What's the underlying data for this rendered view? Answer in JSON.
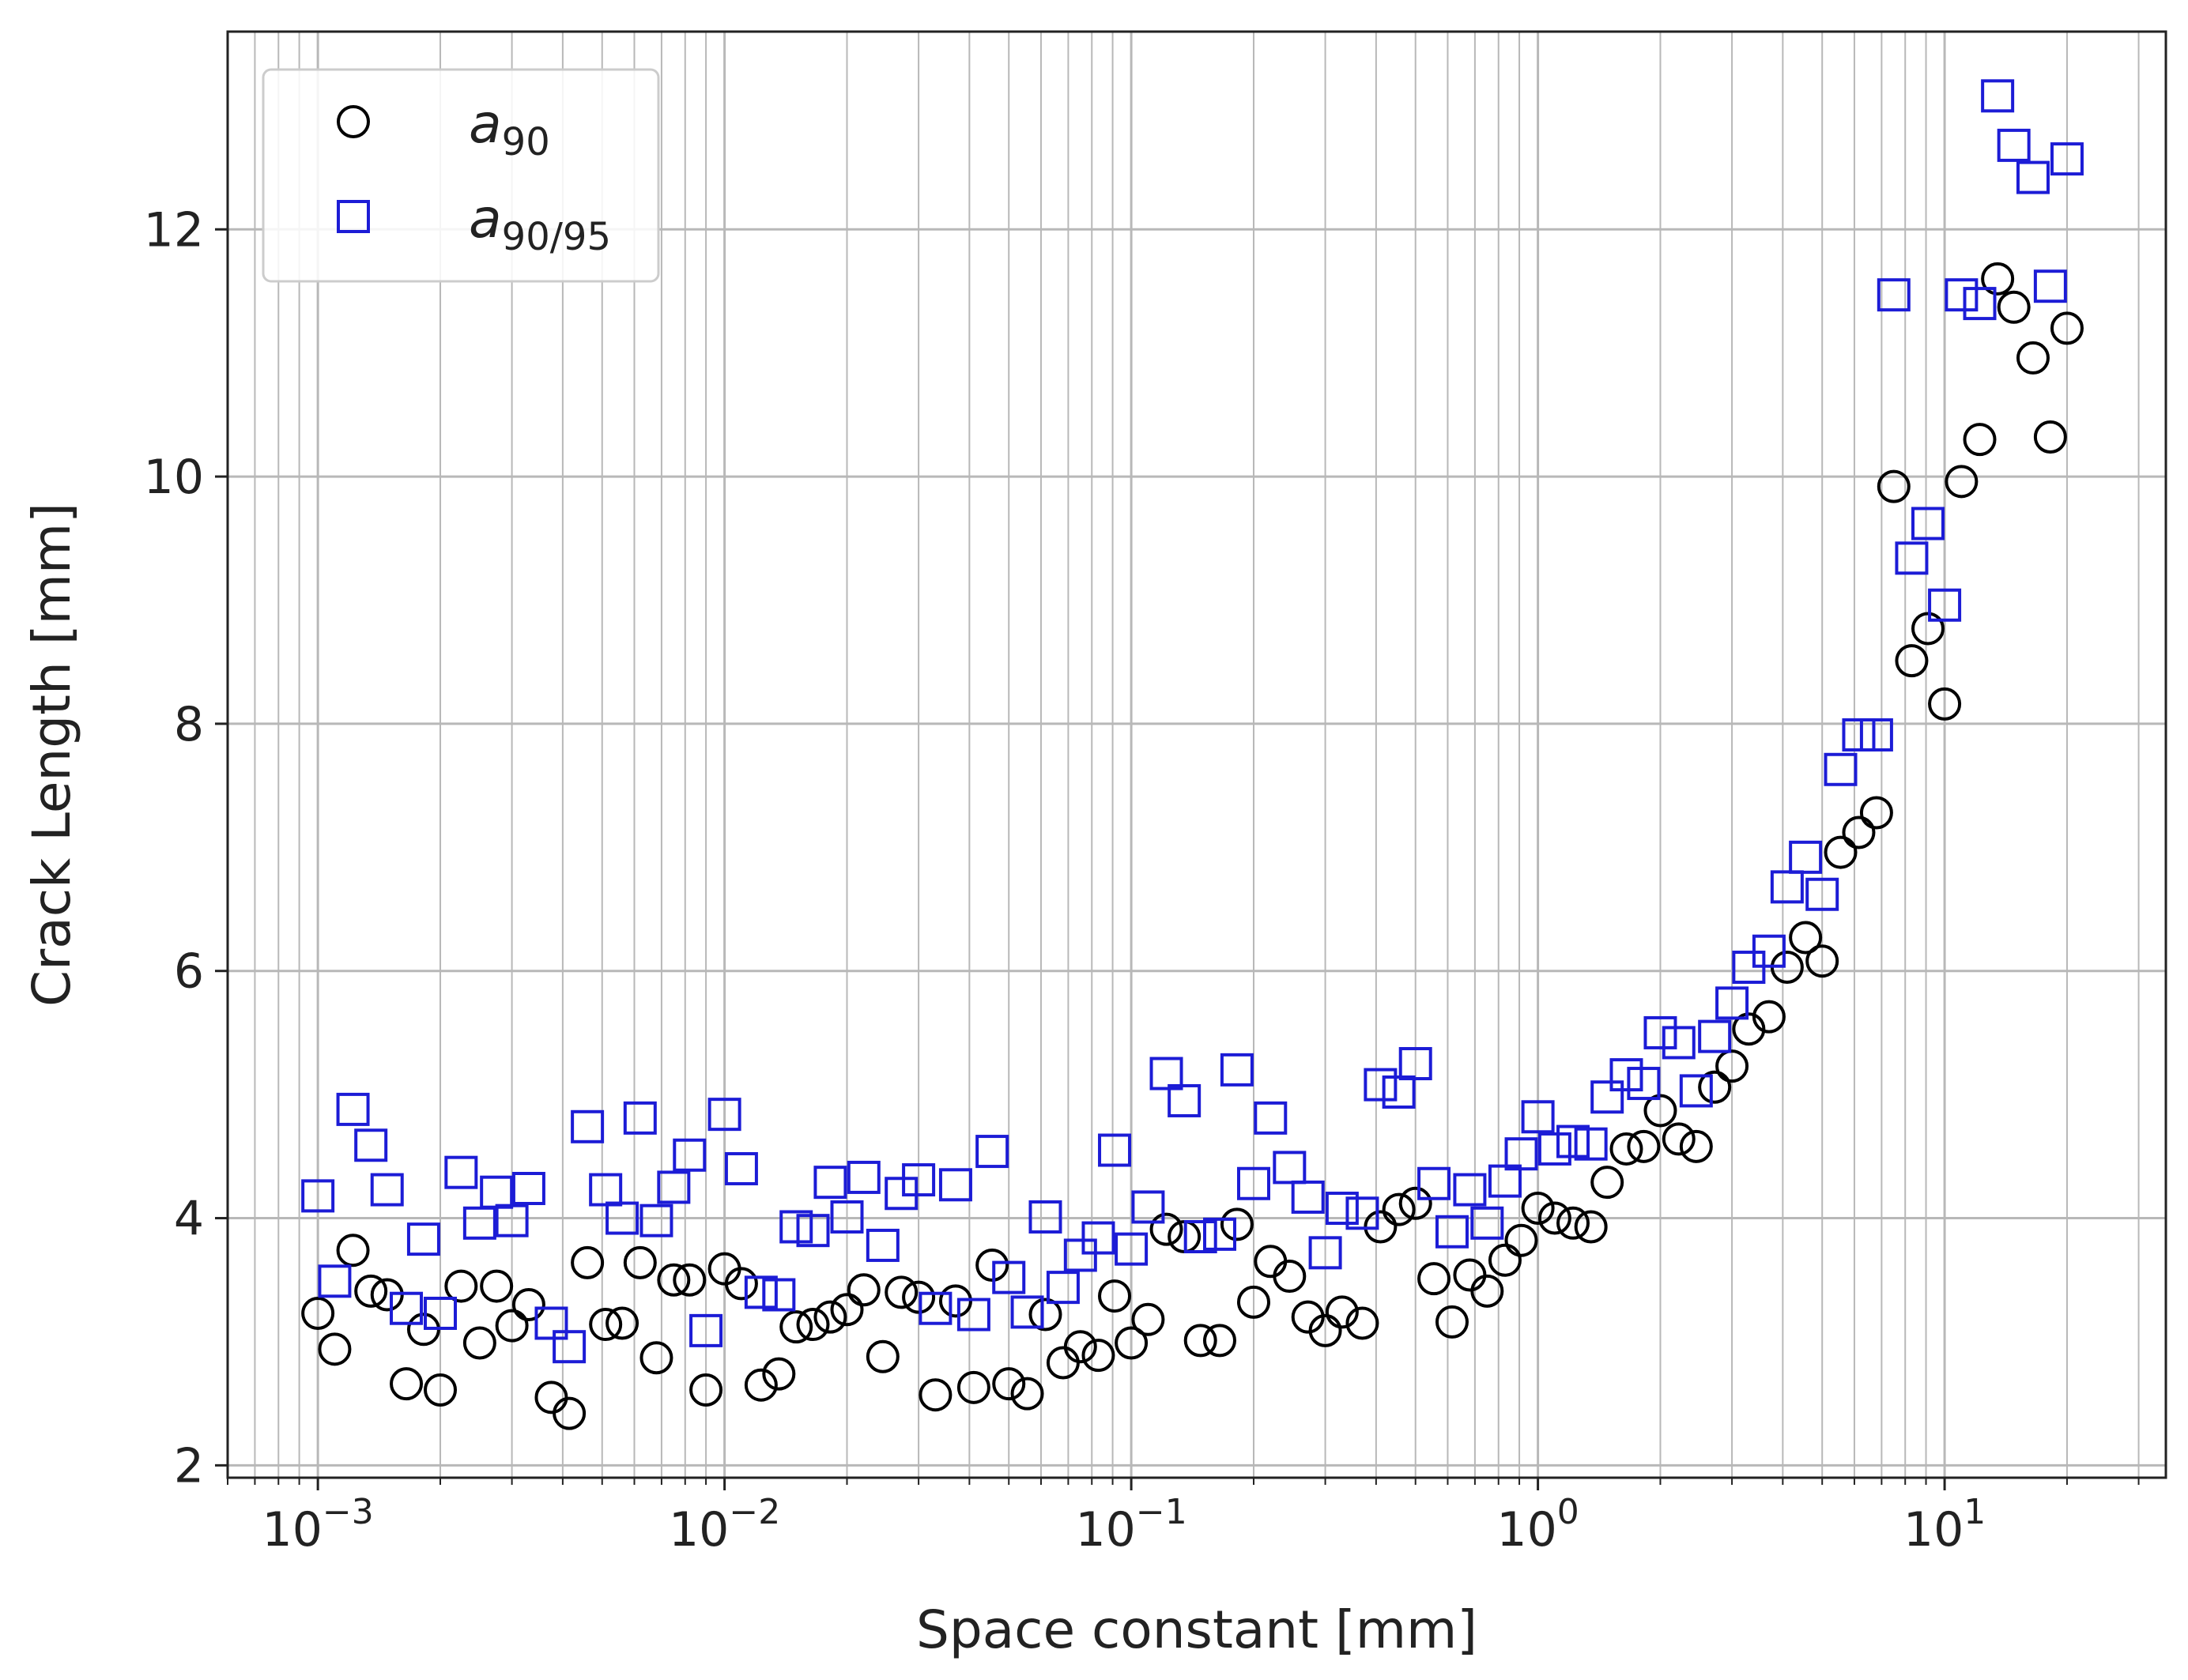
{
  "chart_data": {
    "type": "scatter",
    "title": "",
    "xlabel": "Space constant [mm]",
    "ylabel": "Crack Length [mm]",
    "x_scale": "log",
    "xlim": [
      0.0006,
      35
    ],
    "ylim": [
      1.9,
      13.6
    ],
    "x_ticks": [
      {
        "value": 0.001,
        "base": "10",
        "exp": "−3"
      },
      {
        "value": 0.01,
        "base": "10",
        "exp": "−2"
      },
      {
        "value": 0.1,
        "base": "10",
        "exp": "−1"
      },
      {
        "value": 1,
        "base": "10",
        "exp": "0"
      },
      {
        "value": 10,
        "base": "10",
        "exp": "1"
      }
    ],
    "y_ticks": [
      2,
      4,
      6,
      8,
      10,
      12
    ],
    "grid": true,
    "legend_position": "top-left",
    "series": [
      {
        "name": "a90",
        "label_main": "a",
        "label_sub": "90",
        "marker": "circle",
        "color": "#000000",
        "points": [
          [
            0.001,
            3.23
          ],
          [
            0.0011,
            2.94
          ],
          [
            0.00122,
            3.74
          ],
          [
            0.00135,
            3.41
          ],
          [
            0.00148,
            3.38
          ],
          [
            0.00165,
            2.66
          ],
          [
            0.00182,
            3.1
          ],
          [
            0.002,
            2.61
          ],
          [
            0.00225,
            3.45
          ],
          [
            0.0025,
            2.99
          ],
          [
            0.00275,
            3.45
          ],
          [
            0.003,
            3.13
          ],
          [
            0.0033,
            3.3
          ],
          [
            0.00375,
            2.55
          ],
          [
            0.00415,
            2.42
          ],
          [
            0.0046,
            3.64
          ],
          [
            0.0051,
            3.14
          ],
          [
            0.0056,
            3.15
          ],
          [
            0.0062,
            3.64
          ],
          [
            0.0068,
            2.87
          ],
          [
            0.0075,
            3.5
          ],
          [
            0.0082,
            3.5
          ],
          [
            0.009,
            2.61
          ],
          [
            0.01,
            3.59
          ],
          [
            0.011,
            3.47
          ],
          [
            0.0123,
            2.65
          ],
          [
            0.0136,
            2.74
          ],
          [
            0.015,
            3.12
          ],
          [
            0.0165,
            3.14
          ],
          [
            0.0182,
            3.2
          ],
          [
            0.02,
            3.26
          ],
          [
            0.022,
            3.42
          ],
          [
            0.0245,
            2.88
          ],
          [
            0.0272,
            3.4
          ],
          [
            0.03,
            3.36
          ],
          [
            0.033,
            2.57
          ],
          [
            0.037,
            3.33
          ],
          [
            0.041,
            2.63
          ],
          [
            0.0455,
            3.62
          ],
          [
            0.05,
            2.66
          ],
          [
            0.0555,
            2.58
          ],
          [
            0.0615,
            3.22
          ],
          [
            0.068,
            2.83
          ],
          [
            0.075,
            2.96
          ],
          [
            0.083,
            2.89
          ],
          [
            0.091,
            3.37
          ],
          [
            0.1,
            2.99
          ],
          [
            0.11,
            3.18
          ],
          [
            0.122,
            3.91
          ],
          [
            0.135,
            3.85
          ],
          [
            0.148,
            3.01
          ],
          [
            0.165,
            3.01
          ],
          [
            0.182,
            3.95
          ],
          [
            0.2,
            3.32
          ],
          [
            0.22,
            3.65
          ],
          [
            0.245,
            3.53
          ],
          [
            0.272,
            3.2
          ],
          [
            0.3,
            3.09
          ],
          [
            0.33,
            3.24
          ],
          [
            0.37,
            3.15
          ],
          [
            0.41,
            3.93
          ],
          [
            0.455,
            4.07
          ],
          [
            0.5,
            4.12
          ],
          [
            0.555,
            3.51
          ],
          [
            0.615,
            3.16
          ],
          [
            0.68,
            3.54
          ],
          [
            0.75,
            3.41
          ],
          [
            0.83,
            3.66
          ],
          [
            0.91,
            3.82
          ],
          [
            1.0,
            4.08
          ],
          [
            1.1,
            4.0
          ],
          [
            1.22,
            3.96
          ],
          [
            1.35,
            3.93
          ],
          [
            1.48,
            4.29
          ],
          [
            1.65,
            4.56
          ],
          [
            1.82,
            4.58
          ],
          [
            2.0,
            4.87
          ],
          [
            2.22,
            4.64
          ],
          [
            2.45,
            4.58
          ],
          [
            2.72,
            5.06
          ],
          [
            3.0,
            5.23
          ],
          [
            3.3,
            5.53
          ],
          [
            3.7,
            5.63
          ],
          [
            4.1,
            6.03
          ],
          [
            4.55,
            6.27
          ],
          [
            5.0,
            6.08
          ],
          [
            5.55,
            6.96
          ],
          [
            6.15,
            7.12
          ],
          [
            6.8,
            7.28
          ],
          [
            7.5,
            9.92
          ],
          [
            8.3,
            8.51
          ],
          [
            9.1,
            8.77
          ],
          [
            10.0,
            8.16
          ],
          [
            11.0,
            9.96
          ],
          [
            12.2,
            10.3
          ],
          [
            13.5,
            11.6
          ],
          [
            14.8,
            11.37
          ],
          [
            16.5,
            10.96
          ],
          [
            18.2,
            10.32
          ],
          [
            20.0,
            11.2
          ]
        ]
      },
      {
        "name": "a90/95",
        "label_main": "a",
        "label_sub": "90/95",
        "marker": "square",
        "color": "#1c1cd6",
        "points": [
          [
            0.001,
            4.18
          ],
          [
            0.0011,
            3.49
          ],
          [
            0.00122,
            4.88
          ],
          [
            0.00135,
            4.59
          ],
          [
            0.00148,
            4.23
          ],
          [
            0.00165,
            3.27
          ],
          [
            0.00182,
            3.83
          ],
          [
            0.002,
            3.23
          ],
          [
            0.00225,
            4.37
          ],
          [
            0.0025,
            3.96
          ],
          [
            0.00275,
            4.21
          ],
          [
            0.003,
            3.98
          ],
          [
            0.0033,
            4.24
          ],
          [
            0.00375,
            3.15
          ],
          [
            0.00415,
            2.96
          ],
          [
            0.0046,
            4.74
          ],
          [
            0.0051,
            4.23
          ],
          [
            0.0056,
            4.0
          ],
          [
            0.0062,
            4.81
          ],
          [
            0.0068,
            3.98
          ],
          [
            0.0075,
            4.25
          ],
          [
            0.0082,
            4.51
          ],
          [
            0.009,
            3.09
          ],
          [
            0.01,
            4.84
          ],
          [
            0.011,
            4.4
          ],
          [
            0.0123,
            3.4
          ],
          [
            0.0136,
            3.38
          ],
          [
            0.015,
            3.93
          ],
          [
            0.0165,
            3.9
          ],
          [
            0.0182,
            4.29
          ],
          [
            0.02,
            4.01
          ],
          [
            0.022,
            4.33
          ],
          [
            0.0245,
            3.78
          ],
          [
            0.0272,
            4.2
          ],
          [
            0.03,
            4.31
          ],
          [
            0.033,
            3.27
          ],
          [
            0.037,
            4.27
          ],
          [
            0.041,
            3.22
          ],
          [
            0.0455,
            4.54
          ],
          [
            0.05,
            3.52
          ],
          [
            0.0555,
            3.24
          ],
          [
            0.0615,
            4.01
          ],
          [
            0.068,
            3.44
          ],
          [
            0.075,
            3.7
          ],
          [
            0.083,
            3.84
          ],
          [
            0.091,
            4.55
          ],
          [
            0.1,
            3.75
          ],
          [
            0.11,
            4.09
          ],
          [
            0.122,
            5.17
          ],
          [
            0.135,
            4.95
          ],
          [
            0.148,
            3.85
          ],
          [
            0.165,
            3.87
          ],
          [
            0.182,
            5.2
          ],
          [
            0.2,
            4.28
          ],
          [
            0.22,
            4.81
          ],
          [
            0.245,
            4.41
          ],
          [
            0.272,
            4.17
          ],
          [
            0.3,
            3.72
          ],
          [
            0.33,
            4.08
          ],
          [
            0.37,
            4.04
          ],
          [
            0.41,
            5.08
          ],
          [
            0.455,
            5.02
          ],
          [
            0.5,
            5.25
          ],
          [
            0.555,
            4.28
          ],
          [
            0.615,
            3.89
          ],
          [
            0.68,
            4.23
          ],
          [
            0.75,
            3.96
          ],
          [
            0.83,
            4.3
          ],
          [
            0.91,
            4.52
          ],
          [
            1.0,
            4.82
          ],
          [
            1.1,
            4.56
          ],
          [
            1.22,
            4.62
          ],
          [
            1.35,
            4.6
          ],
          [
            1.48,
            4.98
          ],
          [
            1.65,
            5.16
          ],
          [
            1.82,
            5.09
          ],
          [
            2.0,
            5.5
          ],
          [
            2.22,
            5.42
          ],
          [
            2.45,
            5.03
          ],
          [
            2.72,
            5.47
          ],
          [
            3.0,
            5.74
          ],
          [
            3.3,
            6.03
          ],
          [
            3.7,
            6.16
          ],
          [
            4.1,
            6.68
          ],
          [
            4.55,
            6.92
          ],
          [
            5.0,
            6.62
          ],
          [
            5.55,
            7.63
          ],
          [
            6.15,
            7.91
          ],
          [
            6.8,
            7.91
          ],
          [
            7.5,
            11.47
          ],
          [
            8.3,
            9.34
          ],
          [
            9.1,
            9.62
          ],
          [
            10.0,
            8.96
          ],
          [
            11.0,
            11.47
          ],
          [
            12.2,
            11.4
          ],
          [
            13.5,
            13.08
          ],
          [
            14.8,
            12.68
          ],
          [
            16.5,
            12.42
          ],
          [
            18.2,
            11.54
          ],
          [
            20.0,
            12.57
          ]
        ]
      }
    ]
  }
}
